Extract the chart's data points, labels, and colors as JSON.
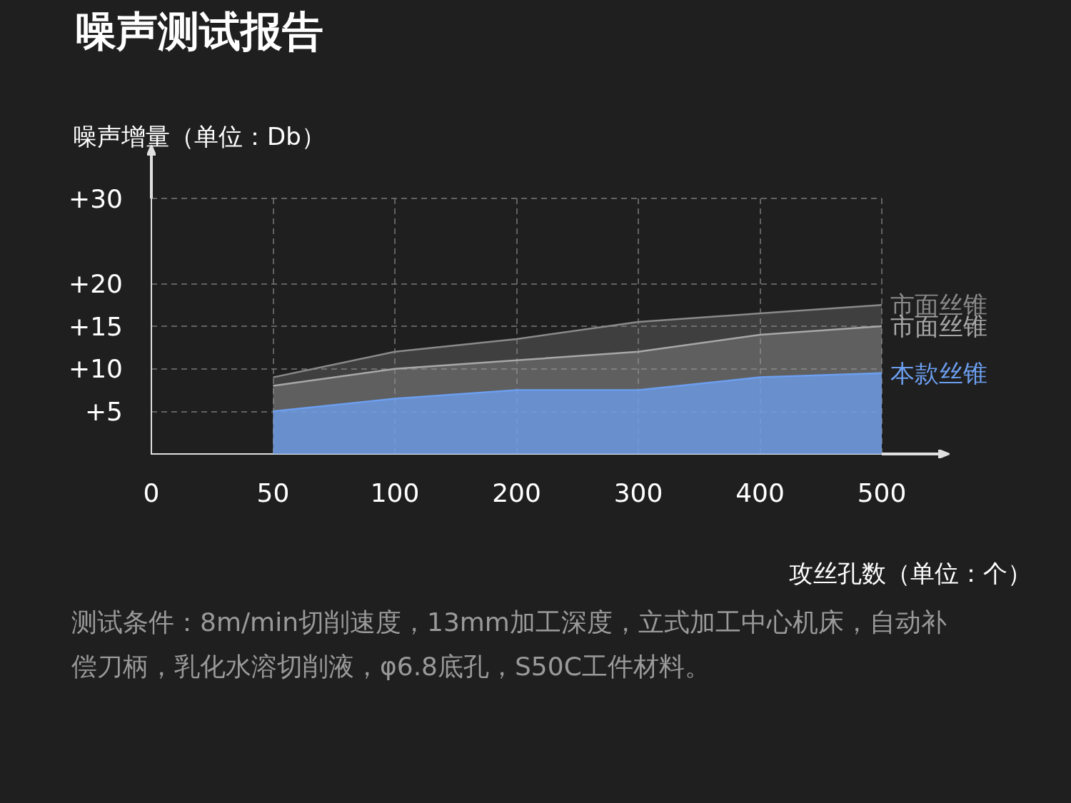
{
  "chart_data": {
    "type": "area",
    "title": "噪声测试报告",
    "ylabel": "噪声增量（单位：Db）",
    "xlabel": "攻丝孔数（单位：个）",
    "annotations": [
      "测试条件：8m/min切削速度，13mm加工深度，立式加工中心机床，自动补偿刀柄，乳化水溶切削液，φ6.8底孔，S50C工件材料。"
    ],
    "categories": [
      "0",
      "50",
      "100",
      "200",
      "300",
      "400",
      "500"
    ],
    "series": [
      {
        "name": "市面丝锥",
        "color": "#8a8a8a",
        "values": [
          null,
          9,
          12,
          13.5,
          15.5,
          16.5,
          17.5
        ]
      },
      {
        "name": "市面丝锥",
        "color": "#a8a8a8",
        "values": [
          null,
          8,
          10,
          11,
          12,
          14,
          15
        ]
      },
      {
        "name": "本款丝锥",
        "color": "#6c9ff0",
        "values": [
          null,
          5,
          6.5,
          7.5,
          7.5,
          9,
          9.5
        ]
      }
    ],
    "ylim": [
      0,
      30
    ],
    "yticks": [
      {
        "value": 5,
        "label": "+5"
      },
      {
        "value": 10,
        "label": "+10"
      },
      {
        "value": 15,
        "label": "+15"
      },
      {
        "value": 20,
        "label": "+20"
      },
      {
        "value": 30,
        "label": "+30"
      }
    ],
    "grid": true,
    "legend": false,
    "marker": "none",
    "line_style": "solid"
  }
}
